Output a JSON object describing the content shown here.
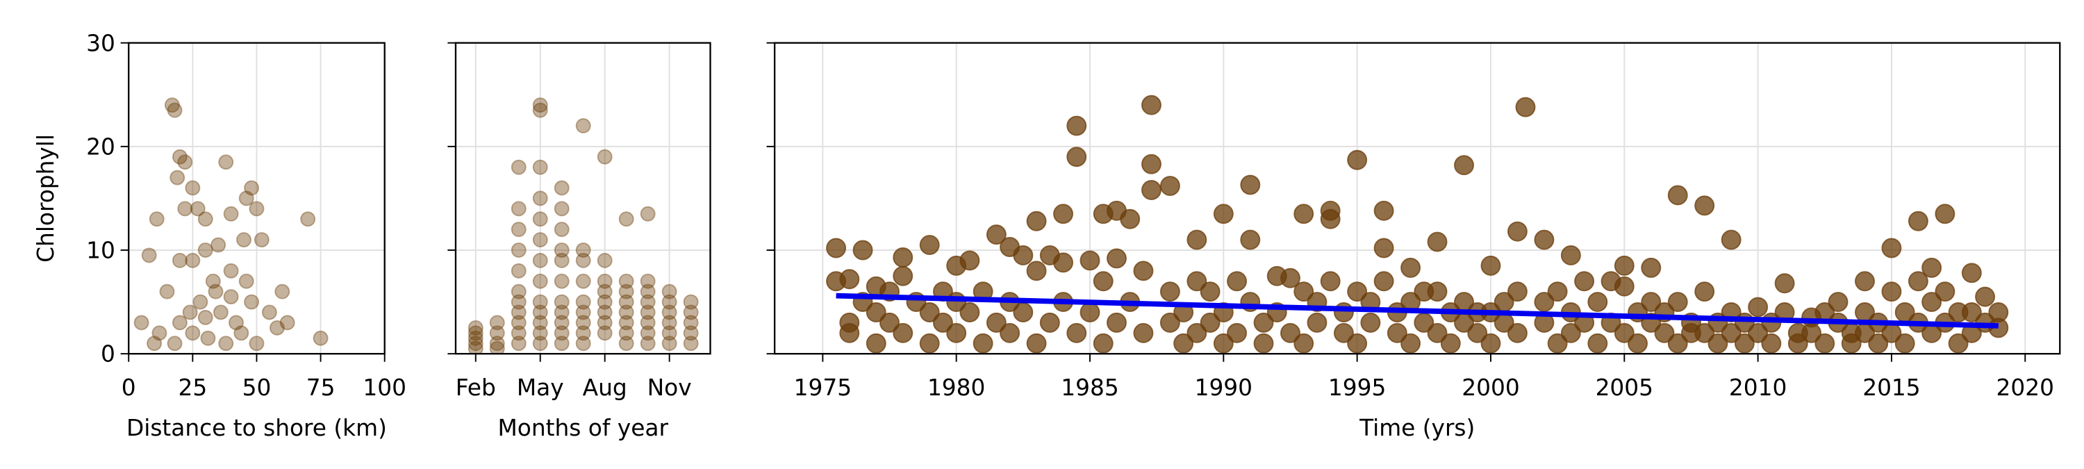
{
  "chart_data": [
    {
      "type": "scatter",
      "ylabel": "Chlorophyll",
      "xlabel": "Distance to shore (km)",
      "xlim": [
        0,
        100
      ],
      "xticks": [
        0,
        25,
        50,
        75,
        100
      ],
      "ylim": [
        0,
        30
      ],
      "yticks": [
        0,
        10,
        20,
        30
      ],
      "ytick_labels": true,
      "grid": true,
      "color": "#6b3e0b",
      "alpha": 0.4,
      "x": [
        17,
        18,
        20,
        22,
        19,
        25,
        38,
        48,
        46,
        50,
        40,
        11,
        27,
        22,
        30,
        70,
        8,
        20,
        25,
        30,
        35,
        45,
        52,
        60,
        15,
        33,
        40,
        28,
        36,
        42,
        48,
        55,
        20,
        25,
        31,
        38,
        44,
        50,
        12,
        5,
        75,
        58,
        62,
        34,
        40,
        46,
        30,
        24,
        18,
        10
      ],
      "values": [
        24,
        23.5,
        19,
        18.5,
        17,
        16,
        18.5,
        16,
        15,
        14,
        13.5,
        13,
        14,
        14,
        13,
        13,
        9.5,
        9,
        9,
        10,
        10.5,
        11,
        11,
        6,
        6,
        7,
        8,
        5,
        4,
        3,
        5,
        4,
        3,
        2,
        1.5,
        1,
        2,
        1,
        2,
        3,
        1.5,
        2.5,
        3,
        6,
        5.5,
        7,
        3.5,
        4,
        1,
        1
      ]
    },
    {
      "type": "scatter",
      "xlabel": "Months of year",
      "xlim": [
        1.07,
        12.9
      ],
      "xticks": [
        {
          "value": 2,
          "label": "Feb"
        },
        {
          "value": 5,
          "label": "May"
        },
        {
          "value": 8,
          "label": "Aug"
        },
        {
          "value": 11,
          "label": "Nov"
        }
      ],
      "ylim": [
        0,
        30
      ],
      "yticks": [
        0,
        10,
        20,
        30
      ],
      "ytick_labels": false,
      "grid": true,
      "color": "#6b3e0b",
      "alpha": 0.4,
      "x": [
        2,
        2,
        2,
        2,
        2,
        3,
        3,
        3,
        3,
        4,
        4,
        4,
        4,
        4,
        4,
        4,
        4,
        4,
        4,
        4,
        5,
        5,
        5,
        5,
        5,
        5,
        5,
        5,
        5,
        5,
        5,
        5,
        5,
        6,
        6,
        6,
        6,
        6,
        6,
        6,
        6,
        6,
        6,
        6,
        7,
        7,
        7,
        7,
        7,
        7,
        7,
        7,
        7,
        8,
        8,
        8,
        8,
        8,
        8,
        8,
        8,
        9,
        9,
        9,
        9,
        9,
        9,
        9,
        9,
        10,
        10,
        10,
        10,
        10,
        10,
        10,
        10,
        11,
        11,
        11,
        11,
        11,
        11,
        12,
        12,
        12,
        12,
        12
      ],
      "values": [
        1,
        2,
        0.5,
        1.5,
        2.5,
        1,
        2,
        3,
        0.5,
        18,
        14,
        12,
        10,
        8,
        6,
        5,
        4,
        3,
        2,
        1,
        24,
        23.5,
        18,
        15,
        13,
        11,
        9,
        7,
        5,
        4,
        3,
        2,
        1,
        16,
        14,
        12,
        10,
        9,
        7,
        5,
        4,
        3,
        2,
        1,
        22,
        10,
        9,
        7,
        5,
        4,
        3,
        2,
        1,
        19,
        9,
        7,
        6,
        5,
        4,
        3,
        2,
        13,
        7,
        6,
        5,
        4,
        3,
        2,
        1,
        13.5,
        7,
        6,
        5,
        4,
        3,
        2,
        1,
        6,
        5,
        4,
        3,
        2,
        1,
        5,
        4,
        3,
        2,
        1
      ]
    },
    {
      "type": "scatter",
      "xlabel": "Time (yrs)",
      "xlim": [
        1973.2,
        2021.3
      ],
      "xticks": [
        1975,
        1980,
        1985,
        1990,
        1995,
        2000,
        2005,
        2010,
        2015,
        2020
      ],
      "ylim": [
        0,
        30
      ],
      "yticks": [
        0,
        10,
        20,
        30
      ],
      "ytick_labels": false,
      "grid": true,
      "color": "#6b3e0b",
      "alpha": 0.75,
      "x": [
        1975.5,
        1975.5,
        1976,
        1976,
        1976,
        1976.5,
        1976.5,
        1977,
        1977,
        1977,
        1977.5,
        1977.5,
        1978,
        1978,
        1978,
        1978.5,
        1979,
        1979,
        1979,
        1979.5,
        1979.5,
        1980,
        1980,
        1980,
        1980.5,
        1980.5,
        1981,
        1981,
        1981.5,
        1981.5,
        1982,
        1982,
        1982,
        1982.5,
        1982.5,
        1983,
        1983,
        1983,
        1983.5,
        1983.5,
        1984,
        1984,
        1984,
        1984.5,
        1984.5,
        1984.5,
        1985,
        1985,
        1985.5,
        1985.5,
        1985.5,
        1986,
        1986,
        1986,
        1986.5,
        1986.5,
        1987,
        1987,
        1987.3,
        1987.3,
        1987.3,
        1988,
        1988,
        1988,
        1988.5,
        1988.5,
        1989,
        1989,
        1989,
        1989.5,
        1989.5,
        1990,
        1990,
        1990,
        1990.5,
        1990.5,
        1991,
        1991,
        1991,
        1991.5,
        1991.5,
        1992,
        1992,
        1992.5,
        1992.5,
        1993,
        1993,
        1993,
        1993.5,
        1993.5,
        1994,
        1994,
        1994,
        1994.5,
        1994.5,
        1995,
        1995,
        1995,
        1995.5,
        1995.5,
        1996,
        1996,
        1996,
        1996.5,
        1996.5,
        1997,
        1997,
        1997,
        1997.5,
        1997.5,
        1998,
        1998,
        1998,
        1998.5,
        1998.5,
        1999,
        1999,
        1999,
        1999.5,
        1999.5,
        2000,
        2000,
        2000,
        2000.5,
        2000.5,
        2001,
        2001,
        2001,
        2001.3,
        2002,
        2002,
        2002,
        2002.5,
        2002.5,
        2003,
        2003,
        2003,
        2003.5,
        2003.5,
        2004,
        2004,
        2004.5,
        2004.5,
        2005,
        2005,
        2005,
        2005.5,
        2005.5,
        2006,
        2006,
        2006,
        2006.5,
        2006.5,
        2007,
        2007,
        2007,
        2007.5,
        2007.5,
        2008,
        2008,
        2008,
        2008.5,
        2008.5,
        2009,
        2009,
        2009,
        2009.5,
        2009.5,
        2010,
        2010,
        2010.5,
        2010.5,
        2011,
        2011,
        2011.5,
        2011.5,
        2012,
        2012,
        2012.5,
        2012.5,
        2013,
        2013,
        2013.5,
        2013.5,
        2014,
        2014,
        2014,
        2014.5,
        2014.5,
        2015,
        2015,
        2015,
        2015.5,
        2015.5,
        2016,
        2016,
        2016,
        2016.5,
        2016.5,
        2016.5,
        2017,
        2017,
        2017,
        2017.5,
        2017.5,
        2018,
        2018,
        2018,
        2018.5,
        2018.5,
        2019,
        2019
      ],
      "values": [
        10.2,
        7,
        7.2,
        3,
        2,
        10,
        5,
        6.5,
        1,
        4,
        3,
        6,
        9.3,
        7.5,
        2,
        5,
        10.5,
        4,
        1,
        6,
        3,
        8.5,
        5,
        2,
        9,
        4,
        6,
        1,
        11.5,
        3,
        10.3,
        5,
        2,
        9.5,
        4,
        12.8,
        8,
        1,
        9.5,
        3,
        8.8,
        13.5,
        5,
        22,
        19,
        2,
        9,
        4,
        13.5,
        1,
        7,
        13.8,
        9.2,
        3,
        13,
        5,
        2,
        8,
        24,
        18.3,
        15.8,
        16.2,
        6,
        3,
        4,
        1,
        11,
        7,
        2,
        6,
        3,
        13.5,
        4,
        1,
        7,
        2,
        11,
        16.3,
        5,
        3,
        1,
        7.5,
        4,
        7.3,
        2,
        13.5,
        6,
        1,
        5,
        3,
        13,
        13.8,
        7,
        4,
        2,
        18.7,
        6,
        1,
        5,
        3,
        13.8,
        10.2,
        7,
        4,
        2,
        8.3,
        5,
        1,
        6,
        3,
        10.8,
        6,
        2,
        4,
        1,
        18.2,
        5,
        3,
        4,
        2,
        8.5,
        4,
        1,
        5,
        3,
        11.8,
        6,
        2,
        23.8,
        11,
        5,
        3,
        6,
        1,
        9.5,
        4,
        2,
        7,
        3,
        5,
        1,
        7,
        3,
        8.5,
        6.5,
        2,
        4,
        1,
        8.3,
        5,
        3,
        4,
        2,
        15.3,
        5,
        1,
        3,
        2,
        14.3,
        6,
        2,
        3,
        1,
        11,
        4,
        2,
        3,
        1,
        4.5,
        2,
        3,
        1,
        6.8,
        4,
        2,
        1,
        3.5,
        2,
        4,
        1,
        5,
        3,
        2,
        1,
        7,
        4,
        2,
        3,
        1,
        10.2,
        6,
        2,
        4,
        1,
        12.8,
        7,
        3,
        8.3,
        5,
        2,
        13.5,
        6,
        3,
        4,
        1,
        7.8,
        4,
        2,
        5.5,
        3,
        4,
        2.5
      ],
      "trend": {
        "x": [
          1975.5,
          2019
        ],
        "values": [
          5.6,
          2.7
        ],
        "color": "#0000ee"
      }
    }
  ]
}
